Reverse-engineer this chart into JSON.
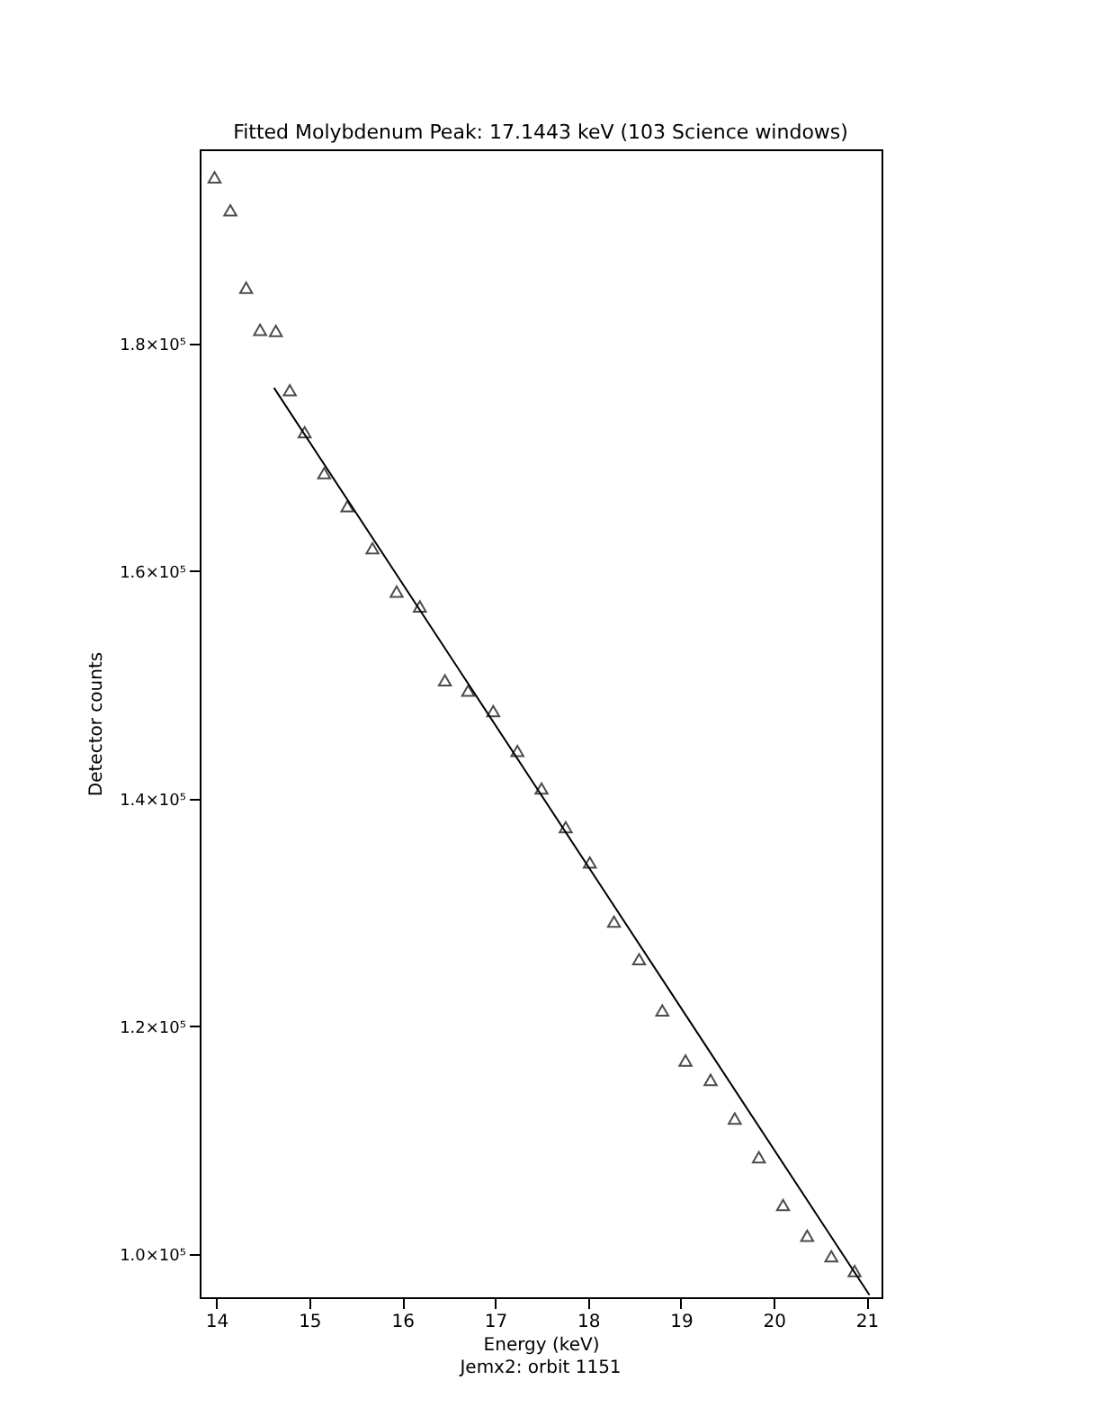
{
  "chart_data": {
    "type": "scatter",
    "title": "Fitted Molybdenum Peak: 17.1443 keV (103 Science windows)",
    "xlabel": "Energy (keV)",
    "ylabel": "Detector counts",
    "annotations": [
      "Jemx2: orbit 1151"
    ],
    "marker": "triangle",
    "xlim": [
      13.82,
      21.16
    ],
    "xticks": [
      14,
      15,
      16,
      17,
      18,
      19,
      20,
      21
    ],
    "ylim": [
      96200,
      197060
    ],
    "yticks": [
      {
        "value": 100000,
        "label": "1.0×10⁵"
      },
      {
        "value": 120000,
        "label": "1.2×10⁵"
      },
      {
        "value": 140000,
        "label": "1.4×10⁵"
      },
      {
        "value": 160000,
        "label": "1.6×10⁵"
      },
      {
        "value": 180000,
        "label": "1.8×10⁵"
      }
    ],
    "series": [
      {
        "type": "scatter",
        "color": "#000000",
        "x": [
          13.98,
          14.15,
          14.32,
          14.47,
          14.64,
          14.79,
          14.95,
          15.16,
          15.41,
          15.68,
          15.94,
          16.19,
          16.46,
          16.71,
          16.98,
          17.24,
          17.5,
          17.76,
          18.02,
          18.28,
          18.55,
          18.8,
          19.05,
          19.32,
          19.58,
          19.84,
          20.1,
          20.36,
          20.62,
          20.87
        ],
        "values": [
          194600,
          191700,
          184900,
          181200,
          181100,
          175900,
          172200,
          168600,
          165700,
          162000,
          158200,
          156900,
          150400,
          149500,
          147700,
          144200,
          140900,
          137500,
          134400,
          129200,
          125900,
          121400,
          117000,
          115300,
          111900,
          108500,
          104300,
          101600,
          99800,
          98500
        ]
      },
      {
        "type": "line",
        "color": "#000000",
        "marker": "none",
        "line_style": "solid",
        "x": [
          14.62,
          21.03
        ],
        "values": [
          176100,
          96400
        ]
      }
    ]
  }
}
